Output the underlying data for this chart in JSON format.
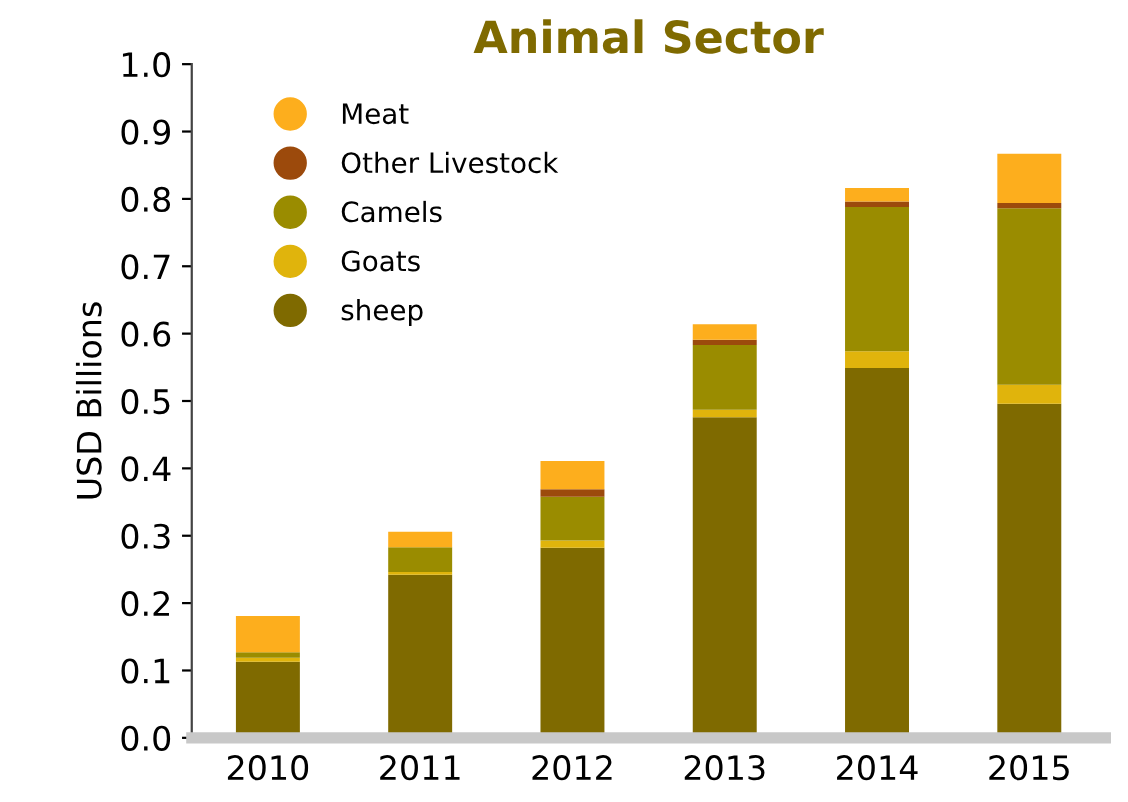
{
  "chart_data": {
    "type": "bar",
    "stacked": true,
    "title": "Animal Sector",
    "ylabel": "USD Billions",
    "categories": [
      "2010",
      "2011",
      "2012",
      "2013",
      "2014",
      "2015"
    ],
    "series": [
      {
        "name": "sheep",
        "color": "#7f6a00",
        "values": [
          0.113,
          0.242,
          0.282,
          0.476,
          0.549,
          0.496
        ]
      },
      {
        "name": "Goats",
        "color": "#e0b40c",
        "values": [
          0.006,
          0.004,
          0.011,
          0.011,
          0.025,
          0.028
        ]
      },
      {
        "name": "Camels",
        "color": "#9a8c00",
        "values": [
          0.008,
          0.037,
          0.065,
          0.096,
          0.214,
          0.262
        ]
      },
      {
        "name": "Other Livestock",
        "color": "#9c4a0c",
        "values": [
          0,
          0,
          0.011,
          0.008,
          0.008,
          0.008
        ]
      },
      {
        "name": "Meat",
        "color": "#fdae1d",
        "values": [
          0.054,
          0.023,
          0.042,
          0.023,
          0.02,
          0.073
        ]
      }
    ],
    "ylim": [
      0,
      1
    ],
    "yticks": [
      {
        "value": 0,
        "label": "0.0"
      },
      {
        "value": 0.1,
        "label": "0.1"
      },
      {
        "value": 0.2,
        "label": "0.2"
      },
      {
        "value": 0.3,
        "label": "0.3"
      },
      {
        "value": 0.4,
        "label": "0.4"
      },
      {
        "value": 0.5,
        "label": "0.5"
      },
      {
        "value": 0.6,
        "label": "0.6"
      },
      {
        "value": 0.7,
        "label": "0.7"
      },
      {
        "value": 0.8,
        "label": "0.8"
      },
      {
        "value": 0.9,
        "label": "0.9"
      },
      {
        "value": 1,
        "label": "1.0"
      }
    ],
    "grid": false,
    "legend": "top left"
  }
}
